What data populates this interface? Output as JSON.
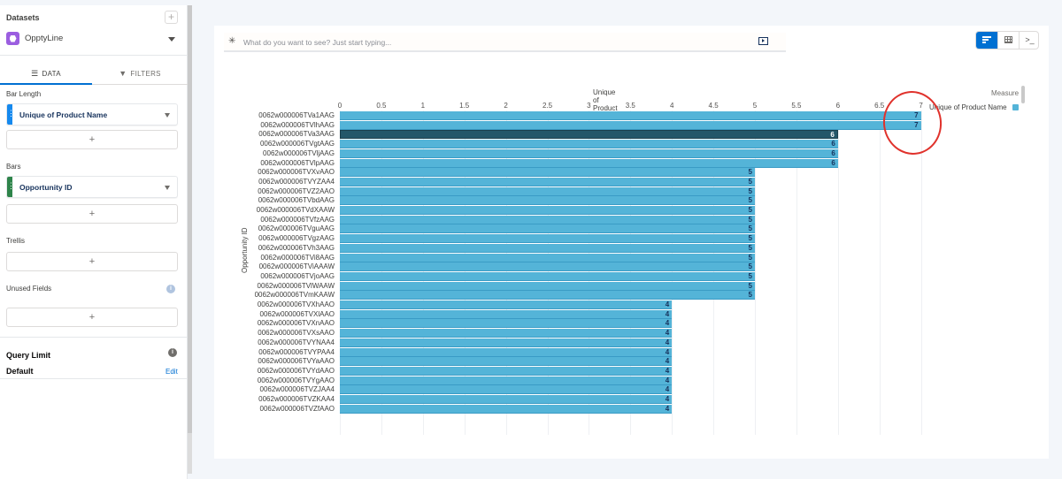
{
  "sidebar": {
    "datasets_title": "Datasets",
    "add_label": "+",
    "dataset": {
      "name": "OpptyLine",
      "icon": "dataset-hexagon-icon",
      "icon_color": "#9b5ee0"
    },
    "tabs": [
      {
        "label": "DATA",
        "icon": "list-icon",
        "icon_glyph": "☰",
        "active": true
      },
      {
        "label": "FILTERS",
        "icon": "funnel-icon",
        "icon_glyph": "▼",
        "active": false
      }
    ],
    "sections": {
      "bar_length": {
        "label": "Bar Length",
        "field": "Unique of Product Name",
        "grip_color": "#1589ee",
        "add": "+"
      },
      "bars": {
        "label": "Bars",
        "field": "Opportunity ID",
        "grip_color": "#2e844a",
        "add": "+"
      },
      "trellis": {
        "label": "Trellis",
        "add": "+"
      },
      "unused": {
        "label": "Unused Fields",
        "info": "i",
        "add": "+"
      }
    },
    "query_limit": {
      "title": "Query Limit",
      "value": "Default",
      "edit": "Edit",
      "info": "i"
    }
  },
  "main": {
    "search": {
      "icon": "sparkle-icon",
      "icon_glyph": "✳",
      "placeholder": "What do you want to see? Just start typing..."
    },
    "view_buttons": [
      {
        "name": "chart-view",
        "active": true
      },
      {
        "name": "table-view",
        "active": false
      },
      {
        "name": "query-view",
        "glyph": ">_",
        "active": false
      }
    ],
    "legend": {
      "title": "Measure",
      "item": "Unique of Product Name",
      "color": "#54b4d8"
    }
  },
  "colors": {
    "bar": "#54b4d8",
    "bar_highlight": "#24576a",
    "accent": "#0070d2",
    "annotation": "#e0322c"
  },
  "chart_data": {
    "type": "bar",
    "orientation": "horizontal",
    "xlabel": "Unique of Product Name ↓",
    "ylabel": "Opportunity ID",
    "xlim": [
      0,
      7
    ],
    "xticks": [
      "0",
      "0.5",
      "1",
      "1.5",
      "2",
      "2.5",
      "3",
      "3.5",
      "4",
      "4.5",
      "5",
      "5.5",
      "6",
      "6.5",
      "7"
    ],
    "grid": true,
    "legend_position": "right",
    "highlighted_category": "0062w000006TVa3AAG",
    "categories": [
      "0062w000006TVa1AAG",
      "0062w000006TVlhAAG",
      "0062w000006TVa3AAG",
      "0062w000006TVgtAAG",
      "0062w000006TVljAAG",
      "0062w000006TVlpAAG",
      "0062w000006TVXvAAO",
      "0062w000006TVYZAA4",
      "0062w000006TVZ2AAO",
      "0062w000006TVbdAAG",
      "0062w000006TVdXAAW",
      "0062w000006TVfzAAG",
      "0062w000006TVguAAG",
      "0062w000006TVgzAAG",
      "0062w000006TVh3AAG",
      "0062w000006TVi8AAG",
      "0062w000006TViAAAW",
      "0062w000006TVjoAAG",
      "0062w000006TVlWAAW",
      "0062w000006TVmKAAW",
      "0062w000006TVXhAAO",
      "0062w000006TVXlAAO",
      "0062w000006TVXnAAO",
      "0062w000006TVXsAAO",
      "0062w000006TVYNAA4",
      "0062w000006TVYPAA4",
      "0062w000006TVYaAAO",
      "0062w000006TVYdAAO",
      "0062w000006TVYgAAO",
      "0062w000006TVZJAA4",
      "0062w000006TVZKAA4",
      "0062w000006TVZfAAO"
    ],
    "values": [
      7,
      7,
      6,
      6,
      6,
      6,
      5,
      5,
      5,
      5,
      5,
      5,
      5,
      5,
      5,
      5,
      5,
      5,
      5,
      5,
      4,
      4,
      4,
      4,
      4,
      4,
      4,
      4,
      4,
      4,
      4,
      4
    ],
    "series": [
      {
        "name": "Unique of Product Name",
        "color": "#54b4d8"
      }
    ]
  }
}
